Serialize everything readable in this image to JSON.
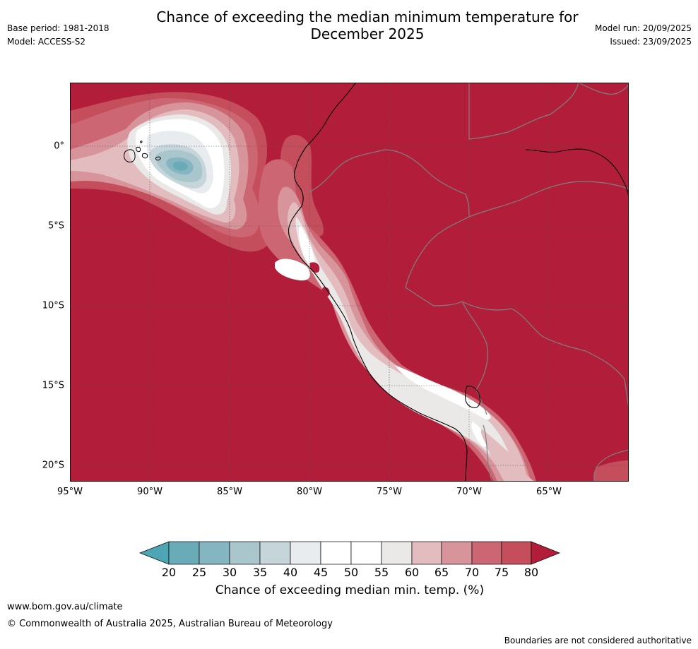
{
  "header": {
    "title_line1": "Chance of exceeding the median minimum temperature for",
    "title_line2": "December 2025",
    "base_period": "Base period: 1981-2018",
    "model": "Model: ACCESS-S2",
    "model_run": "Model run: 20/09/2025",
    "issued": "Issued: 23/09/2025"
  },
  "map": {
    "latitude_labels": [
      "0°",
      "5°S",
      "10°S",
      "15°S",
      "20°S"
    ],
    "longitude_labels": [
      "95°W",
      "90°W",
      "85°W",
      "80°W",
      "75°W",
      "70°W",
      "65°W"
    ],
    "colors": {
      "above_80": "#b21e3a",
      "p75": "#c44e5c",
      "p70": "#cc6672",
      "p65": "#d8949b",
      "p60": "#e3bcc0",
      "p55": "#eae9e8",
      "p50": "#ffffff",
      "p45": "#ffffff",
      "p40": "#e8ecee",
      "p35": "#c6d5da",
      "p30": "#a9c6cd",
      "p25": "#85b5c0",
      "p20": "#6aabb8",
      "coast": "#000000",
      "border": "#7f7f7f",
      "grid": "#555555"
    }
  },
  "colorbar": {
    "labels": [
      "20",
      "25",
      "30",
      "35",
      "40",
      "45",
      "50",
      "55",
      "60",
      "65",
      "70",
      "75",
      "80"
    ],
    "colors": [
      "#6aabb8",
      "#85b5c0",
      "#a9c6cd",
      "#c6d5da",
      "#e8ecee",
      "#ffffff",
      "#ffffff",
      "#eae9e8",
      "#e3bcc0",
      "#d8949b",
      "#cc6672",
      "#c44e5c"
    ],
    "under_color": "#4ea6b4",
    "over_color": "#b21e3a",
    "title": "Chance of exceeding median min. temp. (%)"
  },
  "footer": {
    "website": "www.bom.gov.au/climate",
    "copyright": "© Commonwealth of Australia 2025, Australian Bureau of Meteorology",
    "disclaimer": "Boundaries are not considered authoritative"
  }
}
